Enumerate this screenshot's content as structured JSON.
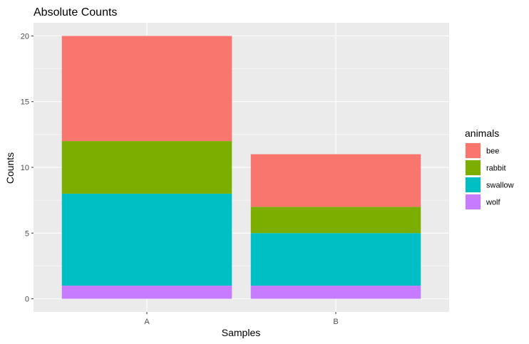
{
  "chart_data": {
    "type": "bar",
    "stacked": true,
    "title": "Absolute Counts",
    "xlabel": "Samples",
    "ylabel": "Counts",
    "categories": [
      "A",
      "B"
    ],
    "ylim": [
      -1,
      21
    ],
    "yticks": [
      0,
      5,
      10,
      15,
      20
    ],
    "legend_title": "animals",
    "legend_position": "right",
    "series": [
      {
        "name": "bee",
        "color": "#F8766D",
        "values": [
          8,
          4
        ]
      },
      {
        "name": "rabbit",
        "color": "#7CAE00",
        "values": [
          4,
          2
        ]
      },
      {
        "name": "swallow",
        "color": "#00BFC4",
        "values": [
          7,
          4
        ]
      },
      {
        "name": "wolf",
        "color": "#C77CFF",
        "values": [
          1,
          1
        ]
      }
    ],
    "stack_order": [
      "wolf",
      "swallow",
      "rabbit",
      "bee"
    ],
    "panel_background": "#EBEBEB",
    "grid_color": "#FFFFFF"
  }
}
